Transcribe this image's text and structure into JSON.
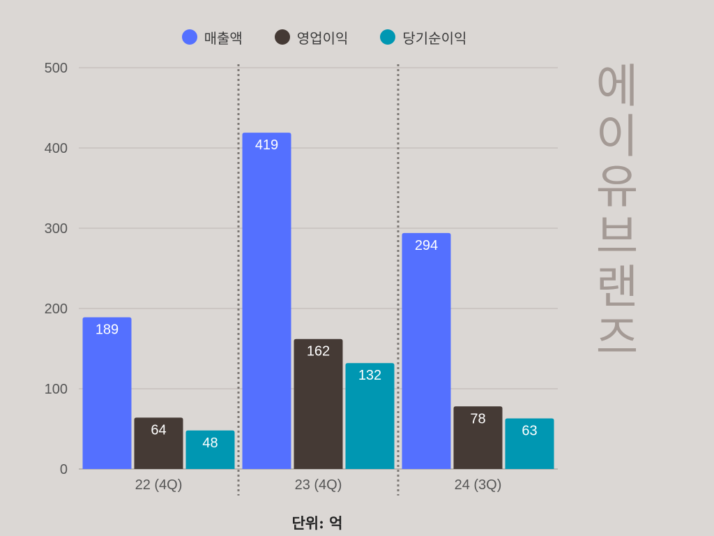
{
  "legend": [
    {
      "label": "매출액",
      "color": "#5470ff"
    },
    {
      "label": "영업이익",
      "color": "#453a35"
    },
    {
      "label": "당기순이익",
      "color": "#0097b2"
    }
  ],
  "brand_text": "에이유브랜즈",
  "unit_label": "단위: 억",
  "chart_data": {
    "type": "bar",
    "categories": [
      "22 (4Q)",
      "23 (4Q)",
      "24 (3Q)"
    ],
    "series": [
      {
        "name": "매출액",
        "values": [
          189,
          419,
          294
        ],
        "color": "#5470ff"
      },
      {
        "name": "영업이익",
        "values": [
          64,
          162,
          78
        ],
        "color": "#453a35"
      },
      {
        "name": "당기순이익",
        "values": [
          48,
          132,
          63
        ],
        "color": "#0097b2"
      }
    ],
    "ylim": [
      0,
      500
    ],
    "yticks": [
      0,
      100,
      200,
      300,
      400,
      500
    ],
    "grid": true,
    "legend_position": "top-center"
  }
}
